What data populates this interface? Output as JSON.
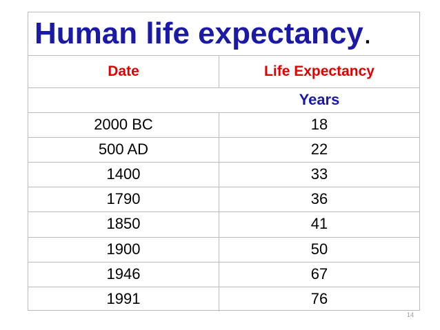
{
  "title": {
    "text": "Human life expectancy",
    "end": "."
  },
  "table": {
    "header": [
      "Date",
      "Life Expectancy"
    ],
    "unit": "Years",
    "rows": [
      [
        "2000 BC",
        18
      ],
      [
        "500 AD",
        22
      ],
      [
        "1400",
        33
      ],
      [
        "1790",
        36
      ],
      [
        "1850",
        41
      ],
      [
        "1900",
        50
      ],
      [
        "1946",
        67
      ],
      [
        "1991",
        76
      ]
    ]
  },
  "page_number": "14"
}
